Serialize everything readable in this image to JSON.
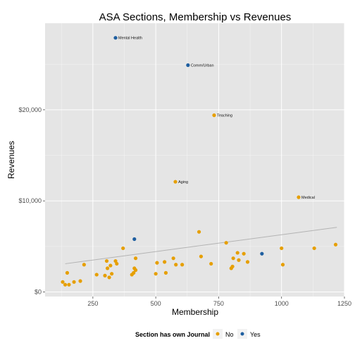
{
  "chart_data": {
    "type": "scatter",
    "title": "ASA Sections, Membership vs Revenues",
    "xlabel": "Membership",
    "ylabel": "Revenues",
    "xlim": [
      60,
      1250
    ],
    "ylim": [
      -500,
      29500
    ],
    "x_ticks": [
      250,
      500,
      750,
      1000,
      1250
    ],
    "x_tick_labels": [
      "250",
      "500",
      "750",
      "1000",
      "1250"
    ],
    "y_ticks": [
      0,
      10000,
      20000
    ],
    "y_tick_labels": [
      "$0",
      "$10,000",
      "$20,000"
    ],
    "grid": true,
    "background_color": "#e5e5e5",
    "grid_color": "#ffffff",
    "legend": {
      "title": "Section has own Journal",
      "position": "bottom",
      "entries": [
        {
          "label": "No",
          "color": "#e69f00"
        },
        {
          "label": "Yes",
          "color": "#1f5fa0"
        }
      ]
    },
    "trend_line": {
      "x": [
        140,
        1220
      ],
      "y": [
        3100,
        7100
      ],
      "color": "#b3b3b3"
    },
    "series": [
      {
        "name": "No",
        "color": "#e69f00",
        "points": [
          {
            "x": 130,
            "y": 1100
          },
          {
            "x": 140,
            "y": 800
          },
          {
            "x": 148,
            "y": 2100
          },
          {
            "x": 155,
            "y": 800
          },
          {
            "x": 175,
            "y": 1100
          },
          {
            "x": 200,
            "y": 1200
          },
          {
            "x": 215,
            "y": 3000
          },
          {
            "x": 265,
            "y": 1900
          },
          {
            "x": 298,
            "y": 1800
          },
          {
            "x": 305,
            "y": 3400
          },
          {
            "x": 308,
            "y": 2600
          },
          {
            "x": 315,
            "y": 1600
          },
          {
            "x": 320,
            "y": 2900
          },
          {
            "x": 325,
            "y": 2000
          },
          {
            "x": 340,
            "y": 3400
          },
          {
            "x": 345,
            "y": 3100
          },
          {
            "x": 370,
            "y": 4800
          },
          {
            "x": 405,
            "y": 1900
          },
          {
            "x": 412,
            "y": 2100
          },
          {
            "x": 415,
            "y": 2600
          },
          {
            "x": 420,
            "y": 2400
          },
          {
            "x": 420,
            "y": 3700
          },
          {
            "x": 500,
            "y": 2000
          },
          {
            "x": 505,
            "y": 3200
          },
          {
            "x": 535,
            "y": 3300
          },
          {
            "x": 540,
            "y": 2100
          },
          {
            "x": 570,
            "y": 3700
          },
          {
            "x": 580,
            "y": 3000
          },
          {
            "x": 605,
            "y": 3000
          },
          {
            "x": 672,
            "y": 6600
          },
          {
            "x": 680,
            "y": 3900
          },
          {
            "x": 720,
            "y": 3100
          },
          {
            "x": 780,
            "y": 5400
          },
          {
            "x": 800,
            "y": 2600
          },
          {
            "x": 805,
            "y": 2800
          },
          {
            "x": 808,
            "y": 3700
          },
          {
            "x": 825,
            "y": 4300
          },
          {
            "x": 830,
            "y": 3500
          },
          {
            "x": 850,
            "y": 4200
          },
          {
            "x": 865,
            "y": 3300
          },
          {
            "x": 1000,
            "y": 4800
          },
          {
            "x": 1005,
            "y": 3000
          },
          {
            "x": 1130,
            "y": 4800
          },
          {
            "x": 1215,
            "y": 5200
          },
          {
            "x": 578,
            "y": 12100,
            "label": "Aging"
          },
          {
            "x": 732,
            "y": 19400,
            "label": "Teaching"
          },
          {
            "x": 1068,
            "y": 10400,
            "label": "Medical"
          }
        ]
      },
      {
        "name": "Yes",
        "color": "#1f5fa0",
        "points": [
          {
            "x": 415,
            "y": 5800
          },
          {
            "x": 922,
            "y": 4200
          },
          {
            "x": 340,
            "y": 27900,
            "label": "Mental Health"
          },
          {
            "x": 628,
            "y": 24900,
            "label": "Comm/Urban"
          }
        ]
      }
    ]
  }
}
